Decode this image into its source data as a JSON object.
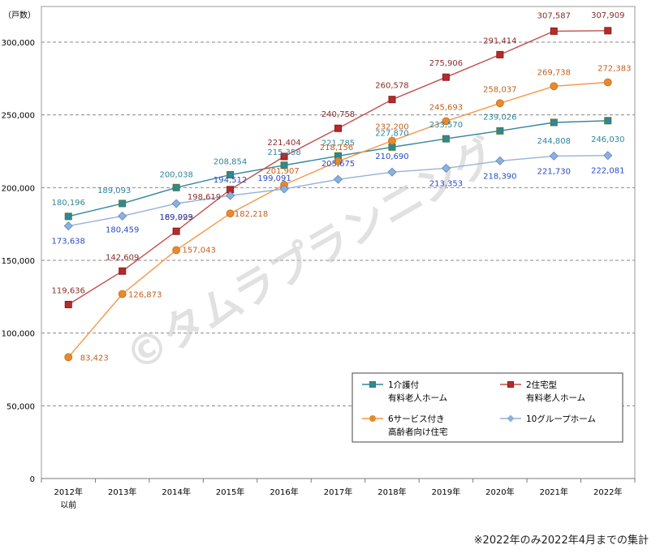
{
  "chart_data": {
    "type": "line",
    "y_unit_label": "（戸数）",
    "categories": [
      "2012年\n以前",
      "2013年",
      "2014年",
      "2015年",
      "2016年",
      "2017年",
      "2018年",
      "2019年",
      "2020年",
      "2021年",
      "2022年"
    ],
    "ylim": [
      0,
      300000
    ],
    "y_ticks": [
      0,
      50000,
      100000,
      150000,
      200000,
      250000,
      300000
    ],
    "y_tick_labels": [
      "0",
      "50,000",
      "100,000",
      "150,000",
      "200,000",
      "250,000",
      "300,000"
    ],
    "grid": "horizontal dashed",
    "legend_placement": "bottom-right",
    "series": [
      {
        "name": "1介護付\n有料老人ホーム",
        "color": "#31859c",
        "marker": "square",
        "marker_fill": "#31859c",
        "values": [
          180196,
          189093,
          200038,
          208854,
          215358,
          221785,
          227870,
          233570,
          239026,
          244808,
          246030
        ],
        "labels": [
          "180,196",
          "189,093",
          "200,038",
          "208,854",
          "215,358",
          "221,785",
          "227,870",
          "233,570",
          "239,026",
          "244,808",
          "246,030"
        ]
      },
      {
        "name": "2住宅型\n有料老人ホーム",
        "color": "#c0504d",
        "marker": "square",
        "marker_fill": "#b52b2b",
        "values": [
          119636,
          142609,
          169993,
          198619,
          221404,
          240758,
          260578,
          275906,
          291414,
          307587,
          307909
        ],
        "labels": [
          "119,636",
          "142,609",
          "169,993",
          "198,619",
          "221,404",
          "240,758",
          "260,578",
          "275,906",
          "291,414",
          "307,587",
          "307,909"
        ]
      },
      {
        "name": "6サービス付き\n高齢者向け住宅",
        "color": "#f79646",
        "marker": "circle",
        "marker_fill": "#e68a2e",
        "values": [
          83423,
          126873,
          157043,
          182218,
          201907,
          218156,
          232200,
          245693,
          258037,
          269738,
          272383
        ],
        "labels": [
          "83,423",
          "126,873",
          "157,043",
          "182,218",
          "201,907",
          "218,156",
          "232,200",
          "245,693",
          "258,037",
          "269,738",
          "272,383"
        ]
      },
      {
        "name": "10グループホーム",
        "color": "#95b3d7",
        "marker": "diamond",
        "marker_fill": "#8eb0dc",
        "values": [
          173638,
          180459,
          189029,
          194512,
          199091,
          205675,
          210690,
          213353,
          218390,
          221730,
          222081
        ],
        "labels": [
          "173,638",
          "180,459",
          "189,029",
          "194,512",
          "199,091",
          "205,675",
          "210,690",
          "213,353",
          "218,390",
          "221,730",
          "222,081"
        ]
      }
    ],
    "label_colors": [
      "#31859c",
      "#8b2c2c",
      "#c0601c",
      "#2a4bc5"
    ],
    "watermark": "©タムラプランニング"
  },
  "footnote": "※2022年のみ2022年4月までの集計"
}
